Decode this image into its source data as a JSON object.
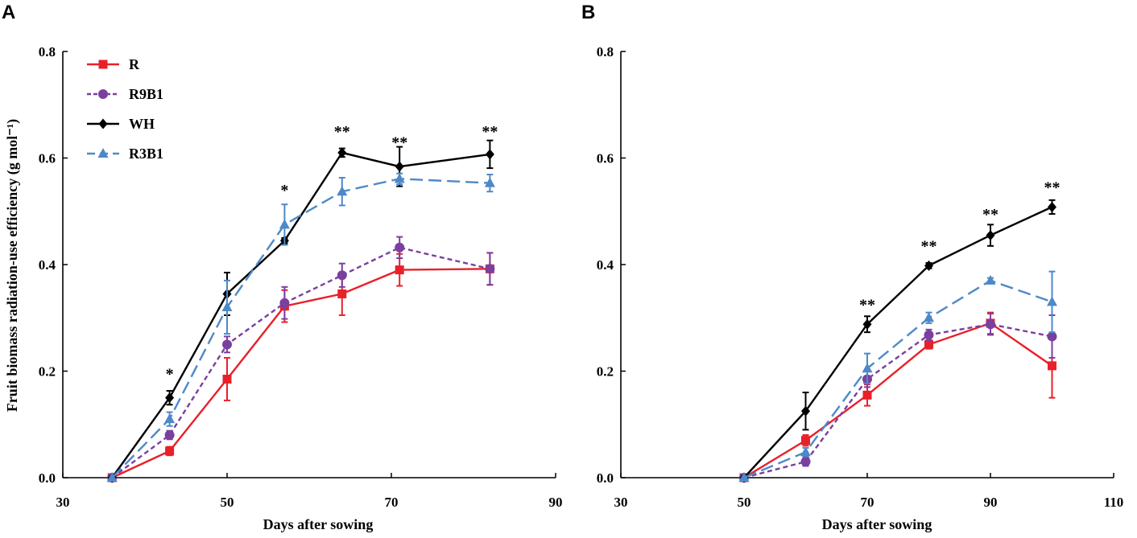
{
  "chart_data": [
    {
      "panel": "A",
      "type": "line",
      "xlabel": "Days after sowing",
      "ylabel": "Fruit biomass radiation-use efficiency (g mol⁻¹)",
      "xlim": [
        30,
        90
      ],
      "ylim": [
        0,
        0.8
      ],
      "xticks": [
        "30",
        "50",
        "70",
        "90"
      ],
      "yticks": [
        "0.0",
        "0.2",
        "0.4",
        "0.6",
        "0.8"
      ],
      "legend": [
        "R",
        "R9B1",
        "WH",
        "R3B1"
      ],
      "series": [
        {
          "name": "R",
          "color": "#e8202a",
          "marker": "square",
          "dash": "solid",
          "x": [
            36,
            43,
            50,
            57,
            64,
            71,
            82
          ],
          "y": [
            0.0,
            0.05,
            0.185,
            0.322,
            0.345,
            0.39,
            0.392
          ],
          "err": [
            0,
            0.008,
            0.04,
            0.03,
            0.04,
            0.03,
            0.03
          ]
        },
        {
          "name": "R9B1",
          "color": "#7b3fa0",
          "marker": "circle",
          "dash": "short",
          "x": [
            36,
            43,
            50,
            57,
            64,
            71,
            82
          ],
          "y": [
            0.0,
            0.08,
            0.25,
            0.328,
            0.38,
            0.432,
            0.392
          ],
          "err": [
            0,
            0.008,
            0.015,
            0.03,
            0.022,
            0.02,
            0.03
          ]
        },
        {
          "name": "WH",
          "color": "#000000",
          "marker": "diamond",
          "dash": "solid",
          "x": [
            36,
            43,
            50,
            57,
            64,
            71,
            82
          ],
          "y": [
            0.0,
            0.15,
            0.345,
            0.445,
            0.61,
            0.584,
            0.607
          ],
          "err": [
            0,
            0.013,
            0.04,
            0.005,
            0.008,
            0.037,
            0.026
          ]
        },
        {
          "name": "R3B1",
          "color": "#4d89c8",
          "marker": "triangle",
          "dash": "long",
          "x": [
            36,
            43,
            50,
            57,
            64,
            71,
            82
          ],
          "y": [
            0.0,
            0.11,
            0.32,
            0.475,
            0.537,
            0.561,
            0.553
          ],
          "err": [
            0,
            0.013,
            0.05,
            0.038,
            0.026,
            0.01,
            0.016
          ]
        }
      ],
      "annotations": [
        {
          "x": 43,
          "y": 0.2,
          "text": "*"
        },
        {
          "x": 57,
          "y": 0.545,
          "text": "*"
        },
        {
          "x": 64,
          "y": 0.655,
          "text": "**"
        },
        {
          "x": 71,
          "y": 0.635,
          "text": "**"
        },
        {
          "x": 82,
          "y": 0.655,
          "text": "**"
        }
      ]
    },
    {
      "panel": "B",
      "type": "line",
      "xlabel": "Days after sowing",
      "ylabel": "",
      "xlim": [
        30,
        110
      ],
      "ylim": [
        0,
        0.8
      ],
      "xticks": [
        "30",
        "50",
        "70",
        "90",
        "110"
      ],
      "yticks": [
        "0.0",
        "0.2",
        "0.4",
        "0.6",
        "0.8"
      ],
      "series": [
        {
          "name": "R",
          "color": "#e8202a",
          "marker": "square",
          "dash": "solid",
          "x": [
            50,
            60,
            70,
            80,
            90,
            100
          ],
          "y": [
            0.0,
            0.07,
            0.155,
            0.25,
            0.29,
            0.21
          ],
          "err": [
            0,
            0.01,
            0.02,
            0.008,
            0.02,
            0.06
          ]
        },
        {
          "name": "R9B1",
          "color": "#7b3fa0",
          "marker": "circle",
          "dash": "short",
          "x": [
            50,
            60,
            70,
            80,
            90,
            100
          ],
          "y": [
            0.0,
            0.03,
            0.185,
            0.268,
            0.288,
            0.265
          ],
          "err": [
            0,
            0.008,
            0.015,
            0.01,
            0.02,
            0.04
          ]
        },
        {
          "name": "WH",
          "color": "#000000",
          "marker": "diamond",
          "dash": "solid",
          "x": [
            50,
            60,
            70,
            80,
            90,
            100
          ],
          "y": [
            0.0,
            0.125,
            0.288,
            0.398,
            0.455,
            0.508
          ],
          "err": [
            0,
            0.035,
            0.015,
            0.005,
            0.02,
            0.013
          ]
        },
        {
          "name": "R3B1",
          "color": "#4d89c8",
          "marker": "triangle",
          "dash": "long",
          "x": [
            50,
            60,
            70,
            80,
            90,
            100
          ],
          "y": [
            0.0,
            0.048,
            0.205,
            0.3,
            0.37,
            0.33
          ],
          "err": [
            0,
            0.008,
            0.028,
            0.01,
            0.005,
            0.057
          ]
        }
      ],
      "annotations": [
        {
          "x": 70,
          "y": 0.33,
          "text": "**"
        },
        {
          "x": 80,
          "y": 0.44,
          "text": "**"
        },
        {
          "x": 90,
          "y": 0.5,
          "text": "**"
        },
        {
          "x": 100,
          "y": 0.55,
          "text": "**"
        }
      ]
    }
  ]
}
